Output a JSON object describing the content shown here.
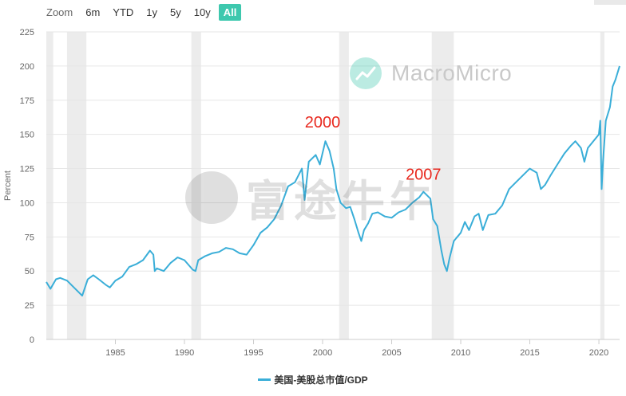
{
  "zoom": {
    "label": "Zoom",
    "buttons": [
      {
        "label": "6m",
        "active": false
      },
      {
        "label": "YTD",
        "active": false
      },
      {
        "label": "1y",
        "active": false
      },
      {
        "label": "5y",
        "active": false
      },
      {
        "label": "10y",
        "active": false
      },
      {
        "label": "All",
        "active": true
      }
    ]
  },
  "logo": {
    "text": "MacroMicro",
    "icon": "chart-trend-icon"
  },
  "watermark": {
    "text": "富途牛牛"
  },
  "legend": {
    "label": "美国-美股总市值/GDP"
  },
  "colors": {
    "series": "#3aaed8",
    "accent": "#3ec8ae",
    "annotation": "#e8281e",
    "recession": "#ececec"
  },
  "chart_data": {
    "type": "line",
    "ylabel": "Percent",
    "ylim": [
      0,
      225
    ],
    "xlim": [
      1980.0,
      2021.5
    ],
    "y_ticks": [
      0,
      25,
      50,
      75,
      100,
      125,
      150,
      175,
      200,
      225
    ],
    "x_ticks": [
      1985,
      1990,
      1995,
      2000,
      2005,
      2010,
      2015,
      2020
    ],
    "grid": "horizontal",
    "legend_position": "bottom-center",
    "recessions": [
      [
        1980.0,
        1980.5
      ],
      [
        1981.5,
        1982.9
      ],
      [
        1990.5,
        1991.2
      ],
      [
        2001.2,
        2001.9
      ],
      [
        2007.9,
        2009.5
      ],
      [
        2020.1,
        2020.4
      ]
    ],
    "annotations": [
      {
        "text": "2000",
        "x": 2000.0,
        "y": 155
      },
      {
        "text": "2007",
        "x": 2007.3,
        "y": 117
      }
    ],
    "series": [
      {
        "name": "美国-美股总市值/GDP",
        "x": [
          1980.0,
          1980.3,
          1980.7,
          1981.0,
          1981.5,
          1982.0,
          1982.4,
          1982.6,
          1983.0,
          1983.4,
          1983.8,
          1984.3,
          1984.6,
          1985.0,
          1985.5,
          1986.0,
          1986.5,
          1987.0,
          1987.5,
          1987.75,
          1987.85,
          1988.0,
          1988.5,
          1989.0,
          1989.5,
          1990.0,
          1990.6,
          1990.8,
          1991.0,
          1991.5,
          1992.0,
          1992.5,
          1993.0,
          1993.5,
          1994.0,
          1994.5,
          1995.0,
          1995.5,
          1996.0,
          1996.5,
          1997.0,
          1997.5,
          1998.0,
          1998.5,
          1998.7,
          1999.0,
          1999.5,
          1999.8,
          2000.2,
          2000.5,
          2000.8,
          2001.0,
          2001.3,
          2001.7,
          2002.0,
          2002.3,
          2002.6,
          2002.8,
          2003.0,
          2003.3,
          2003.6,
          2004.0,
          2004.5,
          2005.0,
          2005.5,
          2006.0,
          2006.5,
          2007.0,
          2007.3,
          2007.8,
          2008.0,
          2008.3,
          2008.6,
          2008.8,
          2009.0,
          2009.2,
          2009.5,
          2010.0,
          2010.3,
          2010.6,
          2011.0,
          2011.3,
          2011.6,
          2012.0,
          2012.5,
          2013.0,
          2013.5,
          2014.0,
          2014.5,
          2015.0,
          2015.5,
          2015.8,
          2016.1,
          2016.5,
          2017.0,
          2017.5,
          2018.0,
          2018.3,
          2018.7,
          2018.95,
          2019.2,
          2019.6,
          2020.0,
          2020.1,
          2020.2,
          2020.3,
          2020.5,
          2020.8,
          2021.0,
          2021.2,
          2021.5
        ],
        "values": [
          42,
          37,
          44,
          45,
          43,
          38,
          34,
          32,
          44,
          47,
          44,
          40,
          38,
          43,
          46,
          53,
          55,
          58,
          65,
          62,
          50,
          52,
          50,
          56,
          60,
          58,
          51,
          50,
          58,
          61,
          63,
          64,
          67,
          66,
          63,
          62,
          69,
          78,
          82,
          88,
          98,
          112,
          115,
          125,
          102,
          130,
          135,
          128,
          145,
          138,
          125,
          110,
          100,
          96,
          97,
          88,
          78,
          72,
          80,
          85,
          92,
          93,
          90,
          89,
          93,
          95,
          100,
          104,
          108,
          103,
          88,
          83,
          65,
          55,
          50,
          60,
          72,
          78,
          86,
          80,
          90,
          92,
          80,
          91,
          92,
          98,
          110,
          115,
          120,
          125,
          122,
          110,
          113,
          120,
          128,
          136,
          142,
          145,
          140,
          130,
          140,
          145,
          150,
          160,
          110,
          130,
          160,
          170,
          185,
          190,
          200
        ]
      }
    ]
  }
}
